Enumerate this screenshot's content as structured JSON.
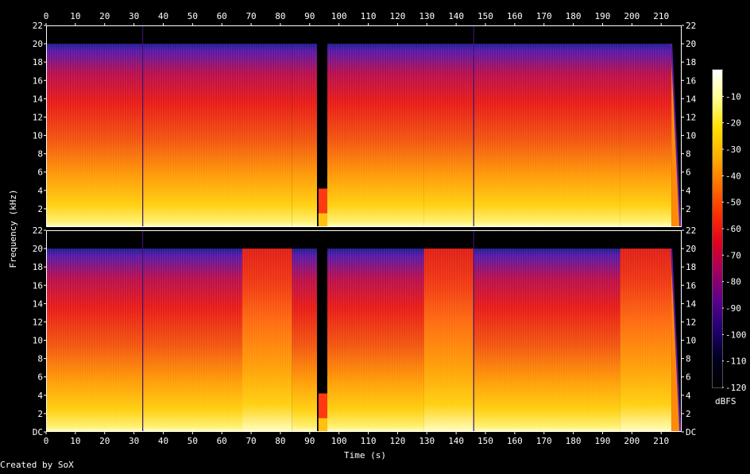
{
  "footer": {
    "credit": "Created by SoX"
  },
  "chart_data": {
    "type": "heatmap",
    "title": "",
    "xlabel": "Time (s)",
    "ylabel": "Frequency (kHz)",
    "x_ticks": [
      "0",
      "10",
      "20",
      "30",
      "40",
      "50",
      "60",
      "70",
      "80",
      "90",
      "100",
      "110",
      "120",
      "130",
      "140",
      "150",
      "160",
      "170",
      "180",
      "190",
      "200",
      "210"
    ],
    "x_range": [
      0,
      217
    ],
    "channels": [
      {
        "y_ticks": [
          "2",
          "4",
          "6",
          "8",
          "10",
          "12",
          "14",
          "16",
          "18",
          "20",
          "22"
        ],
        "y_range": [
          0,
          22
        ]
      },
      {
        "y_ticks": [
          "DC",
          "2",
          "4",
          "6",
          "8",
          "10",
          "12",
          "14",
          "16",
          "18",
          "20",
          "22"
        ],
        "y_range": [
          0,
          22
        ]
      }
    ],
    "colorbar": {
      "label": "dBFS",
      "ticks": [
        "-10",
        "-20",
        "-30",
        "-40",
        "-50",
        "-60",
        "-70",
        "-80",
        "-90",
        "-100",
        "-110",
        "-120"
      ],
      "range": [
        -120,
        0
      ],
      "stops": [
        "#ffffff",
        "#ffff90",
        "#ffe000",
        "#ffb000",
        "#ff7000",
        "#ff3000",
        "#e00020",
        "#a00060",
        "#5a0090",
        "#200070",
        "#000020",
        "#000000"
      ]
    },
    "segments": [
      {
        "start": 0,
        "end": 33,
        "note": ""
      },
      {
        "start": 33,
        "end": 67,
        "note": ""
      },
      {
        "start": 67,
        "end": 84,
        "note": ""
      },
      {
        "start": 84,
        "end": 92.5,
        "note": ""
      },
      {
        "start": 93,
        "end": 96,
        "note": ""
      },
      {
        "start": 96,
        "end": 129,
        "note": ""
      },
      {
        "start": 129,
        "end": 146,
        "note": ""
      },
      {
        "start": 146,
        "end": 196,
        "note": ""
      },
      {
        "start": 196,
        "end": 213.5,
        "note": ""
      }
    ],
    "cutoff_khz": 20
  }
}
